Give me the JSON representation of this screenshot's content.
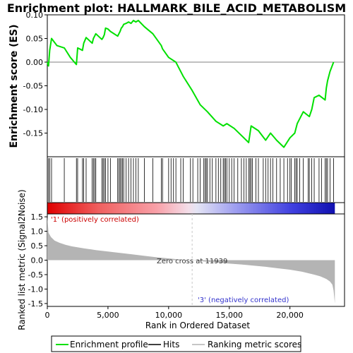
{
  "chart_data": {
    "type": "line",
    "title": "Enrichment plot: HALLMARK_BILE_ACID_METABOLISM",
    "ylabel_top": "Enrichment score (ES)",
    "ylabel_bottom": "Ranked list metric (Signal2Noise)",
    "xlabel": "Rank in Ordered Dataset",
    "xlim": [
      0,
      24500
    ],
    "x_ticks": [
      0,
      5000,
      10000,
      15000,
      20000
    ],
    "x_tick_labels": [
      "0",
      "5,000",
      "10,000",
      "15,000",
      "20,000"
    ],
    "es_ylim": [
      -0.2,
      0.1
    ],
    "es_ticks": [
      0.1,
      0.05,
      0.0,
      -0.05,
      -0.1,
      -0.15
    ],
    "es_tick_labels": [
      "0.10",
      "0.05",
      "0.00",
      "-0.05",
      "-0.10",
      "-0.15"
    ],
    "metric_ylim": [
      -1.6,
      1.6
    ],
    "metric_ticks": [
      1.5,
      1.0,
      0.5,
      0.0,
      -0.5,
      -1.0,
      -1.5
    ],
    "metric_tick_labels": [
      "1.5",
      "1.0",
      "0.5",
      "0.0",
      "-0.5",
      "-1.0",
      "-1.5"
    ],
    "zero_cross_rank": 11939,
    "zero_cross_label": "Zero cross at 11939",
    "pos_label": "'1' (positively correlated)",
    "neg_label": "'3' (negatively correlated)",
    "n_genes": 23700,
    "colors": {
      "es_line": "#00e000",
      "pos_label": "#cc0000",
      "neg_label": "#3333cc",
      "metric_fill": "#b4b4b4",
      "zero_line": "#c8c8c8"
    },
    "legend": [
      {
        "name": "Enrichment profile",
        "color": "#00e000"
      },
      {
        "name": "Hits",
        "color": "#000000"
      },
      {
        "name": "Ranking metric scores",
        "color": "#b4b4b4"
      }
    ],
    "hits": [
      100,
      200,
      350,
      1400,
      2400,
      2500,
      2900,
      3000,
      3200,
      3700,
      3800,
      3900,
      4000,
      4500,
      4600,
      4700,
      4800,
      5000,
      5200,
      5800,
      5900,
      6000,
      6100,
      6200,
      6300,
      6500,
      6700,
      6900,
      7100,
      7300,
      7500,
      8000,
      8700,
      9400,
      9500,
      10000,
      10200,
      10400,
      10600,
      11000,
      11200,
      11800,
      12000,
      12400,
      12600,
      12900,
      13000,
      13100,
      13200,
      13400,
      13600,
      13900,
      14100,
      14300,
      14500,
      14600,
      14700,
      14800,
      15000,
      15200,
      15400,
      15700,
      16000,
      16200,
      16400,
      16600,
      16700,
      16800,
      16900,
      17200,
      17400,
      17800,
      18000,
      18200,
      18400,
      18600,
      18900,
      19200,
      19500,
      19800,
      20000,
      20100,
      20400,
      20500,
      20600,
      20800,
      21100,
      21500,
      21600,
      21800,
      22000,
      22400,
      22600,
      22900,
      23000,
      23100,
      23300,
      23600
    ],
    "es_profile": {
      "x": [
        0,
        100,
        200,
        350,
        800,
        1400,
        1900,
        2400,
        2500,
        2900,
        3000,
        3200,
        3700,
        3800,
        3900,
        4000,
        4500,
        4600,
        4700,
        4800,
        5000,
        5200,
        5800,
        5900,
        6000,
        6100,
        6200,
        6300,
        6500,
        6700,
        6900,
        7100,
        7300,
        7500,
        8000,
        8700,
        9400,
        9500,
        10000,
        10600,
        11200,
        11939,
        12600,
        13200,
        13900,
        14500,
        14800,
        15400,
        16000,
        16400,
        16600,
        16800,
        17400,
        18000,
        18400,
        18900,
        19500,
        20000,
        20400,
        20600,
        21100,
        21600,
        21800,
        22000,
        22400,
        22900,
        23000,
        23100,
        23300,
        23600
      ],
      "y": [
        0.0,
        -0.008,
        0.025,
        0.05,
        0.035,
        0.03,
        0.01,
        -0.005,
        0.03,
        0.025,
        0.04,
        0.052,
        0.04,
        0.05,
        0.055,
        0.06,
        0.048,
        0.052,
        0.058,
        0.072,
        0.07,
        0.065,
        0.055,
        0.06,
        0.065,
        0.072,
        0.075,
        0.08,
        0.082,
        0.085,
        0.082,
        0.088,
        0.085,
        0.088,
        0.075,
        0.06,
        0.035,
        0.028,
        0.01,
        0.0,
        -0.03,
        -0.06,
        -0.09,
        -0.105,
        -0.125,
        -0.135,
        -0.13,
        -0.14,
        -0.155,
        -0.165,
        -0.17,
        -0.135,
        -0.145,
        -0.165,
        -0.15,
        -0.165,
        -0.18,
        -0.16,
        -0.15,
        -0.13,
        -0.105,
        -0.115,
        -0.1,
        -0.075,
        -0.07,
        -0.08,
        -0.055,
        -0.04,
        -0.02,
        0.0
      ]
    },
    "metric_profile": {
      "x": [
        0,
        100,
        300,
        600,
        1000,
        1500,
        2000,
        3000,
        4000,
        5000,
        6000,
        7000,
        8000,
        9000,
        10000,
        11000,
        11939,
        13000,
        14000,
        15000,
        16000,
        17000,
        18000,
        19000,
        20000,
        21000,
        22000,
        22500,
        23000,
        23300,
        23500,
        23600,
        23700
      ],
      "y": [
        1.5,
        0.95,
        0.8,
        0.68,
        0.6,
        0.53,
        0.48,
        0.41,
        0.35,
        0.3,
        0.25,
        0.2,
        0.15,
        0.1,
        0.06,
        0.02,
        0.0,
        -0.05,
        -0.08,
        -0.12,
        -0.15,
        -0.19,
        -0.23,
        -0.28,
        -0.33,
        -0.4,
        -0.5,
        -0.56,
        -0.65,
        -0.74,
        -0.85,
        -1.05,
        -1.5
      ]
    }
  }
}
